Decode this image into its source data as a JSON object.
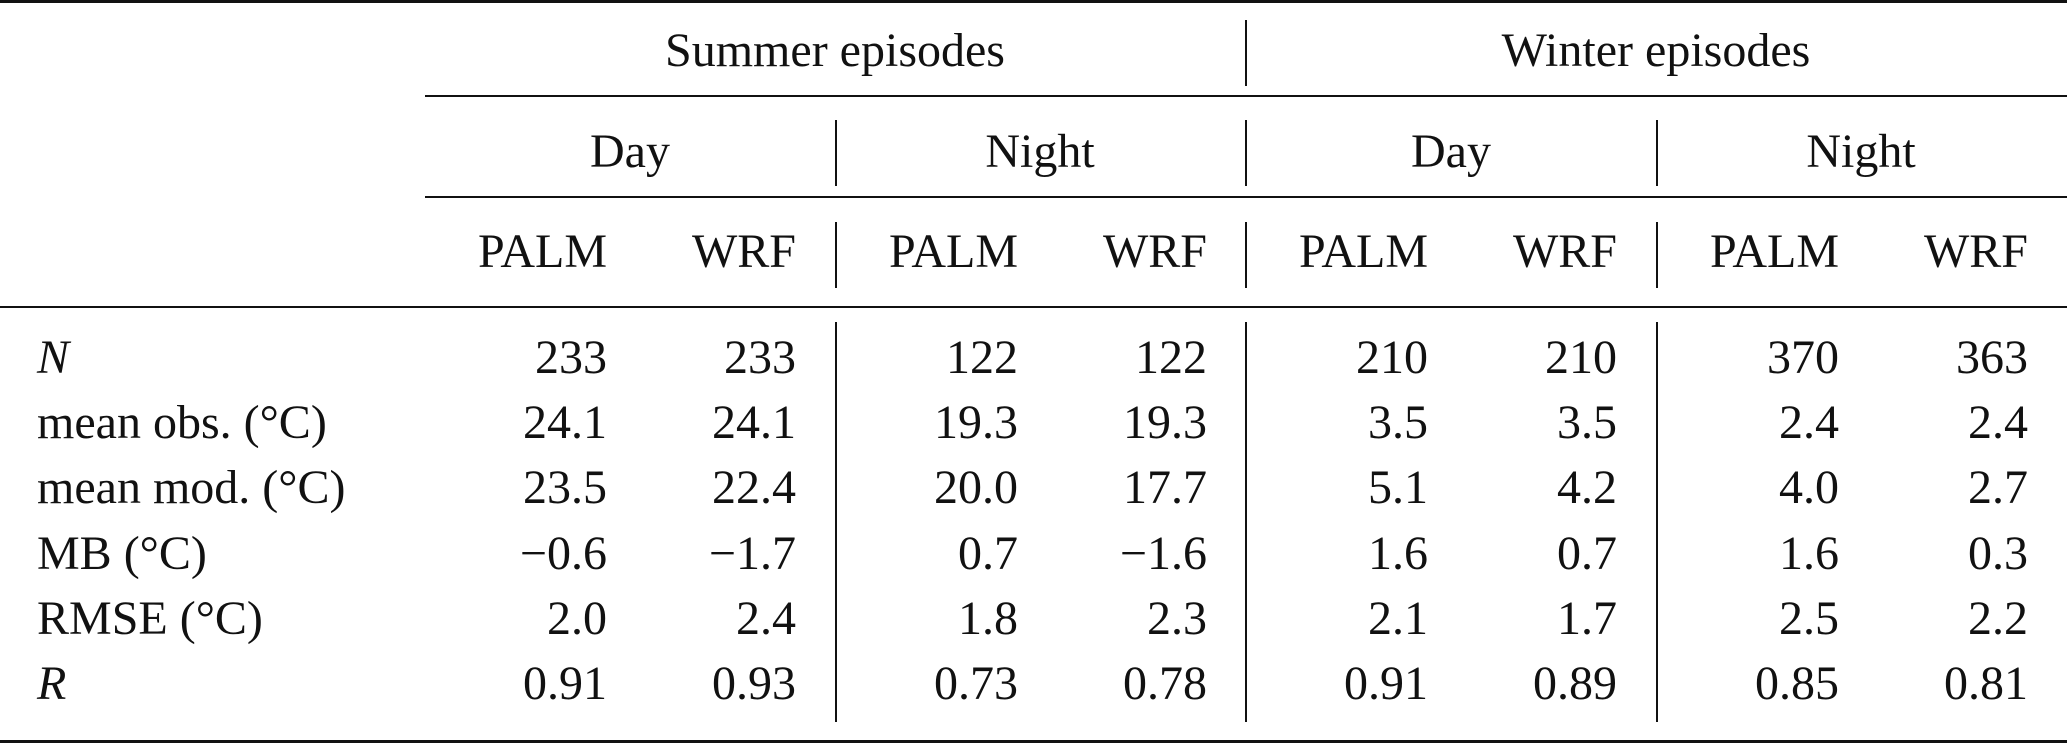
{
  "table": {
    "groups": [
      {
        "label": "Summer episodes",
        "periods": [
          "Day",
          "Night"
        ]
      },
      {
        "label": "Winter episodes",
        "periods": [
          "Day",
          "Night"
        ]
      }
    ],
    "models": [
      "PALM",
      "WRF"
    ],
    "rows": [
      {
        "label": "N",
        "italic": true,
        "values": [
          "233",
          "233",
          "122",
          "122",
          "210",
          "210",
          "370",
          "363"
        ]
      },
      {
        "label": "mean obs. (°C)",
        "italic": false,
        "values": [
          "24.1",
          "24.1",
          "19.3",
          "19.3",
          "3.5",
          "3.5",
          "2.4",
          "2.4"
        ]
      },
      {
        "label": "mean mod. (°C)",
        "italic": false,
        "values": [
          "23.5",
          "22.4",
          "20.0",
          "17.7",
          "5.1",
          "4.2",
          "4.0",
          "2.7"
        ]
      },
      {
        "label": "MB (°C)",
        "italic": false,
        "values": [
          "−0.6",
          "−1.7",
          "0.7",
          "−1.6",
          "1.6",
          "0.7",
          "1.6",
          "0.3"
        ]
      },
      {
        "label": "RMSE (°C)",
        "italic": false,
        "values": [
          "2.0",
          "2.4",
          "1.8",
          "2.3",
          "2.1",
          "1.7",
          "2.5",
          "2.2"
        ]
      },
      {
        "label": "R",
        "italic": true,
        "values": [
          "0.91",
          "0.93",
          "0.73",
          "0.78",
          "0.91",
          "0.89",
          "0.85",
          "0.81"
        ]
      }
    ]
  }
}
